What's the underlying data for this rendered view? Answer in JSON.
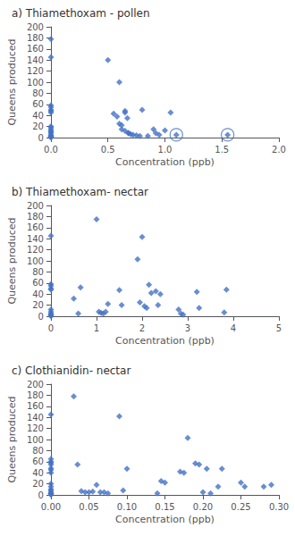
{
  "chart_data": [
    {
      "type": "scatter",
      "title": "a) Thiamethoxam - pollen",
      "xlabel": "Concentration (ppb)",
      "ylabel": "Queens produced",
      "xlim": [
        0,
        2
      ],
      "ylim": [
        0,
        200
      ],
      "xticks": [
        {
          "value": 0,
          "label": "0.0"
        },
        0.5,
        {
          "value": 1.0,
          "label": "1.0"
        },
        1.5,
        {
          "value": 2.0,
          "label": "2.0"
        }
      ],
      "yticks": [
        0,
        20,
        40,
        60,
        80,
        100,
        120,
        140,
        160,
        180,
        200
      ],
      "x": [
        0,
        0,
        0,
        0,
        0,
        0,
        0,
        0,
        0,
        0,
        0,
        0,
        0,
        0,
        0,
        0,
        0,
        0,
        0.5,
        0.55,
        0.58,
        0.6,
        0.62,
        0.65,
        0.65,
        0.67,
        0.68,
        0.7,
        0.6,
        0.62,
        0.65,
        0.68,
        0.72,
        0.75,
        0.78,
        0.8,
        0.85,
        0.9,
        0.92,
        0.95,
        1.0,
        1.05,
        1.1,
        1.55
      ],
      "values": [
        178,
        145,
        58,
        55,
        50,
        48,
        45,
        20,
        18,
        15,
        12,
        10,
        8,
        5,
        3,
        2,
        1,
        0,
        140,
        43,
        38,
        25,
        22,
        45,
        48,
        35,
        8,
        6,
        100,
        15,
        12,
        8,
        5,
        4,
        3,
        50,
        3,
        15,
        8,
        5,
        13,
        45,
        5,
        5
      ],
      "circled_x": [
        1.1,
        1.55
      ],
      "circled_y": [
        5,
        5
      ],
      "color": "#4472C4",
      "marker": "diamond",
      "grid": false
    },
    {
      "type": "scatter",
      "title": "b) Thiamethoxam- nectar",
      "xlabel": "Concentration (ppb)",
      "ylabel": "Queens produced",
      "xlim": [
        0,
        5
      ],
      "ylim": [
        0,
        200
      ],
      "xticks": [
        0,
        1,
        2,
        3,
        4,
        5
      ],
      "yticks": [
        0,
        20,
        40,
        60,
        80,
        100,
        120,
        140,
        160,
        180,
        200
      ],
      "x": [
        0,
        0,
        0,
        0,
        0,
        0,
        0,
        0,
        0,
        0,
        0,
        0.5,
        0.6,
        0.65,
        1.0,
        1.05,
        1.1,
        1.15,
        1.2,
        1.25,
        1.5,
        1.55,
        1.9,
        1.95,
        2.0,
        2.05,
        2.1,
        2.15,
        2.2,
        2.3,
        2.35,
        2.4,
        2.8,
        2.85,
        2.9,
        3.2,
        3.25,
        3.8,
        3.85
      ],
      "values": [
        145,
        58,
        55,
        50,
        48,
        12,
        8,
        5,
        3,
        2,
        0,
        32,
        5,
        52,
        175,
        8,
        6,
        5,
        8,
        22,
        47,
        20,
        103,
        25,
        143,
        18,
        15,
        57,
        42,
        45,
        20,
        40,
        12,
        5,
        3,
        44,
        15,
        7,
        48
      ],
      "color": "#4472C4",
      "marker": "diamond",
      "grid": false
    },
    {
      "type": "scatter",
      "title": "c) Clothianidin- nectar",
      "xlabel": "Concentration (ppb)",
      "ylabel": "Queens produced",
      "xlim": [
        0,
        0.3
      ],
      "ylim": [
        0,
        200
      ],
      "xticks": [
        {
          "value": 0,
          "label": "0.00"
        },
        0.05,
        {
          "value": 0.1,
          "label": "0.10"
        },
        {
          "value": 0.15,
          "label": "0.15"
        },
        {
          "value": 0.2,
          "label": "0.20"
        },
        0.25,
        {
          "value": 0.3,
          "label": "0.30"
        }
      ],
      "yticks": [
        0,
        20,
        40,
        60,
        80,
        100,
        120,
        140,
        160,
        180,
        200
      ],
      "x": [
        0,
        0,
        0,
        0,
        0,
        0,
        0,
        0,
        0,
        0,
        0,
        0,
        0,
        0,
        0,
        0,
        0.03,
        0.035,
        0.04,
        0.045,
        0.05,
        0.055,
        0.06,
        0.065,
        0.07,
        0.075,
        0.09,
        0.095,
        0.1,
        0.14,
        0.145,
        0.15,
        0.17,
        0.175,
        0.18,
        0.19,
        0.195,
        0.2,
        0.205,
        0.21,
        0.22,
        0.225,
        0.25,
        0.255,
        0.28,
        0.29
      ],
      "values": [
        145,
        65,
        60,
        58,
        55,
        48,
        45,
        40,
        20,
        15,
        10,
        8,
        5,
        3,
        2,
        0,
        178,
        55,
        7,
        5,
        5,
        6,
        18,
        5,
        5,
        3,
        142,
        8,
        47,
        3,
        25,
        22,
        42,
        40,
        103,
        57,
        55,
        5,
        47,
        3,
        15,
        47,
        22,
        15,
        15,
        18
      ],
      "color": "#4472C4",
      "marker": "diamond",
      "grid": false
    }
  ]
}
